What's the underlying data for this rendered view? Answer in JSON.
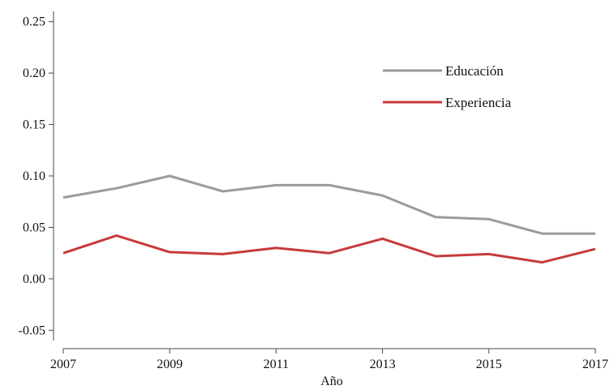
{
  "chart_data": {
    "type": "line",
    "title": "",
    "xlabel": "Año",
    "ylabel": "",
    "x": [
      2007,
      2008,
      2009,
      2010,
      2011,
      2012,
      2013,
      2014,
      2015,
      2016,
      2017
    ],
    "xticks": [
      "2007",
      "2009",
      "2011",
      "2013",
      "2015",
      "2017"
    ],
    "yticks": [
      "-0.05",
      "0.00",
      "0.05",
      "0.10",
      "0.15",
      "0.20",
      "0.25"
    ],
    "xlim": [
      2007,
      2017
    ],
    "ylim": [
      -0.06,
      0.26
    ],
    "grid": false,
    "legend_position": "top-right",
    "series": [
      {
        "name": "Educación",
        "color": "#999b9d",
        "values": [
          0.079,
          0.088,
          0.1,
          0.085,
          0.091,
          0.091,
          0.081,
          0.06,
          0.058,
          0.044,
          0.044
        ]
      },
      {
        "name": "Experiencia",
        "color": "#c83a3a",
        "values": [
          0.025,
          0.042,
          0.026,
          0.024,
          0.03,
          0.025,
          0.039,
          0.022,
          0.024,
          0.016,
          0.029
        ]
      }
    ]
  }
}
